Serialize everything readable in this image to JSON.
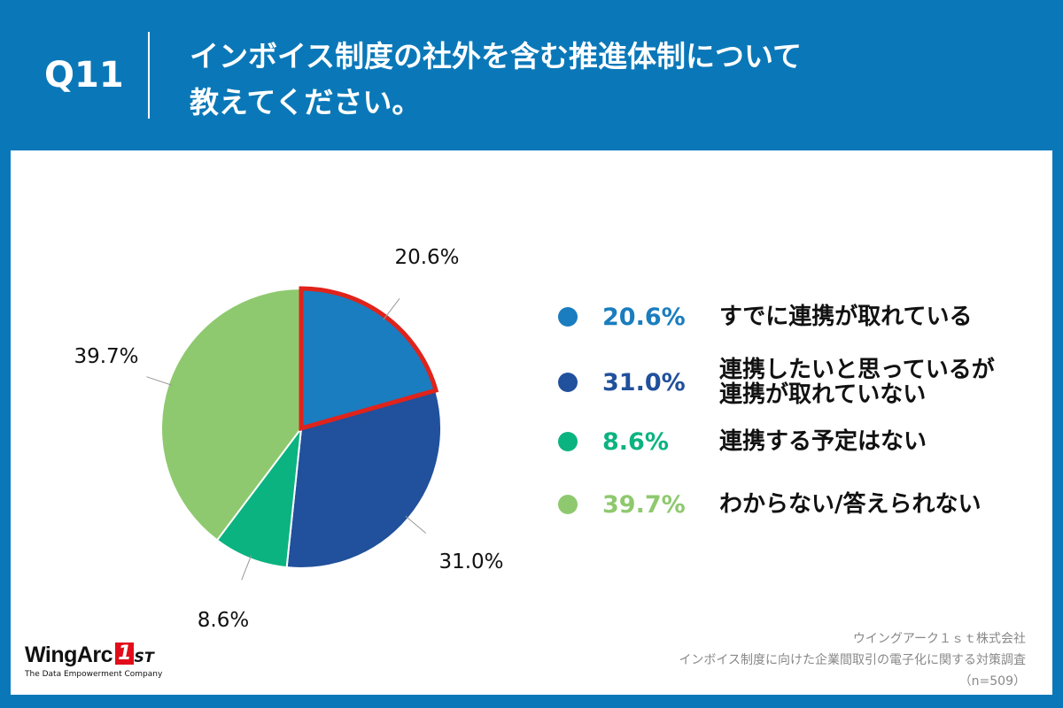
{
  "header": {
    "q_number": "Q11",
    "title_line1": "インボイス制度の社外を含む推進体制について",
    "title_line2": "教えてください。"
  },
  "chart_data": {
    "type": "pie",
    "title": "インボイス制度の社外を含む推進体制について教えてください。",
    "categories": [
      "すでに連携が取れている",
      "連携したいと思っているが連携が取れていない",
      "連携する予定はない",
      "わからない/答えられない"
    ],
    "values": [
      20.6,
      31.0,
      8.6,
      39.7
    ],
    "value_labels": [
      "20.6%",
      "31.0%",
      "8.6%",
      "39.7%"
    ],
    "colors": [
      "#1a7dbf",
      "#21509c",
      "#0bb380",
      "#8fc96f"
    ],
    "highlight_color": "#e0231b",
    "highlight_index": 0
  },
  "legend": [
    {
      "pct": "20.6%",
      "line1": "すでに連携が取れている",
      "line2": "",
      "color": "#1a7dbf"
    },
    {
      "pct": "31.0%",
      "line1": "連携したいと思っているが",
      "line2": "連携が取れていない",
      "color": "#21509c"
    },
    {
      "pct": "8.6%",
      "line1": "連携する予定はない",
      "line2": "",
      "color": "#0bb380"
    },
    {
      "pct": "39.7%",
      "line1": "わからない/答えられない",
      "line2": "",
      "color": "#8fc96f"
    }
  ],
  "footer": {
    "logo_text": "WingArc",
    "logo_mark": "1",
    "logo_suffix": "ST",
    "logo_tagline": "The Data Empowerment Company",
    "source_line1": "ウイングアーク１ｓｔ株式会社",
    "source_line2": "インボイス制度に向けた企業間取引の電子化に関する対策調査",
    "source_line3": "（n=509）"
  }
}
